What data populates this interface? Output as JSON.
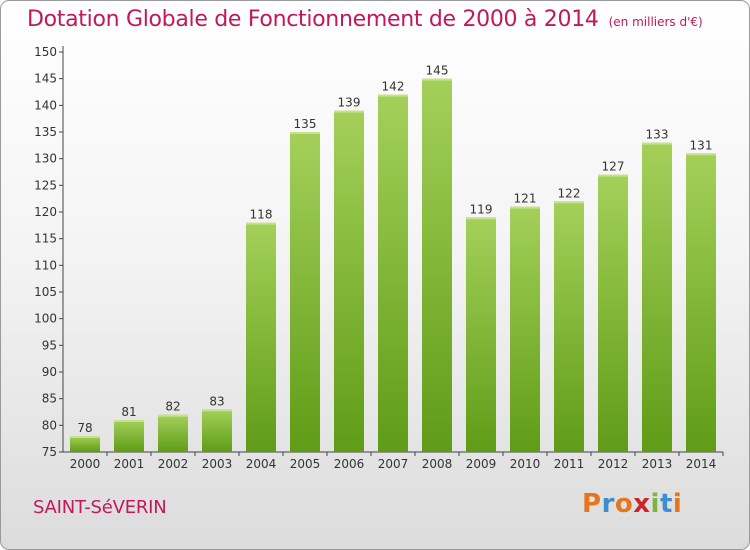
{
  "header": {
    "title": "Dotation Globale de Fonctionnement de 2000 à 2014",
    "subtitle": "(en milliers d'€)"
  },
  "footer": {
    "commune": "SAINT-SéVERIN",
    "logo": "Proxiti"
  },
  "colors": {
    "title": "#c2185b",
    "bar_top": "#a4d05a",
    "bar_bottom": "#5f9c17",
    "logo_letters": [
      "#e8741d",
      "#3b8fd1",
      "#e8741d",
      "#c9262c",
      "#7cb342",
      "#3b8fd1",
      "#e8741d"
    ]
  },
  "chart_data": {
    "type": "bar",
    "categories": [
      "2000",
      "2001",
      "2002",
      "2003",
      "2004",
      "2005",
      "2006",
      "2007",
      "2008",
      "2009",
      "2010",
      "2011",
      "2012",
      "2013",
      "2014"
    ],
    "values": [
      78,
      81,
      82,
      83,
      118,
      135,
      139,
      142,
      145,
      119,
      121,
      122,
      127,
      133,
      131
    ],
    "title": "Dotation Globale de Fonctionnement de 2000 à 2014",
    "subtitle": "(en milliers d'€)",
    "xlabel": "",
    "ylabel": "",
    "ylim": [
      75,
      150
    ],
    "yticks": [
      75,
      80,
      85,
      90,
      95,
      100,
      105,
      110,
      115,
      120,
      125,
      130,
      135,
      140,
      145,
      150
    ],
    "grid": false,
    "data_labels": true
  }
}
